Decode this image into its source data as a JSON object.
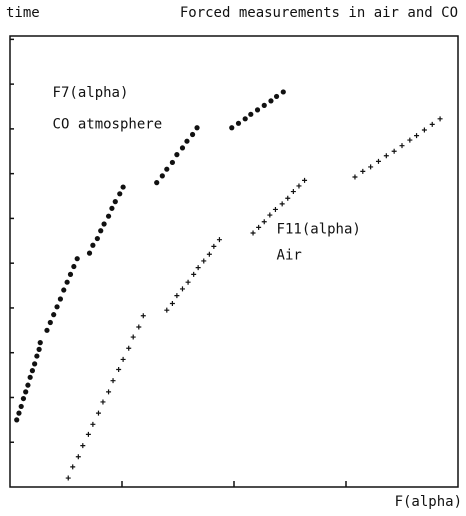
{
  "chart_data": {
    "type": "scatter",
    "title": "Forced measurements in air and CO",
    "y_label": "time",
    "x_label": "F(alpha)",
    "annotations": [
      {
        "text": "F7(alpha)",
        "x": 0.38,
        "y": 3.52
      },
      {
        "text": "CO atmosphere",
        "x": 0.38,
        "y": 3.24
      },
      {
        "text": "F11(alpha)",
        "x": 2.38,
        "y": 2.3
      },
      {
        "text": "Air",
        "x": 2.38,
        "y": 2.07
      }
    ],
    "xlim": [
      0,
      4
    ],
    "ylim": [
      0,
      4.03
    ],
    "xticks": [
      1,
      2,
      3
    ],
    "yticks": [
      0.4,
      0.8,
      1.2,
      1.6,
      2.0,
      2.4,
      2.8,
      3.2,
      3.6,
      4.0
    ],
    "series": [
      {
        "name": "F7(alpha)",
        "color": "#111111",
        "marker": "dot",
        "x": [
          0.06,
          0.08,
          0.1,
          0.12,
          0.14,
          0.16,
          0.18,
          0.2,
          0.22,
          0.24,
          0.26,
          0.27,
          0.33,
          0.36,
          0.39,
          0.42,
          0.45,
          0.48,
          0.51,
          0.54,
          0.57,
          0.6,
          0.71,
          0.74,
          0.78,
          0.81,
          0.84,
          0.88,
          0.91,
          0.94,
          0.98,
          1.01,
          1.31,
          1.36,
          1.4,
          1.45,
          1.49,
          1.54,
          1.58,
          1.63,
          1.67,
          1.98,
          2.04,
          2.1,
          2.15,
          2.21,
          2.27,
          2.33,
          2.38,
          2.44
        ],
        "values": [
          0.6,
          0.66,
          0.72,
          0.79,
          0.85,
          0.91,
          0.98,
          1.04,
          1.1,
          1.17,
          1.23,
          1.29,
          1.4,
          1.47,
          1.54,
          1.61,
          1.68,
          1.76,
          1.83,
          1.9,
          1.97,
          2.04,
          2.09,
          2.16,
          2.22,
          2.29,
          2.35,
          2.42,
          2.49,
          2.55,
          2.62,
          2.68,
          2.72,
          2.78,
          2.84,
          2.9,
          2.97,
          3.03,
          3.09,
          3.15,
          3.21,
          3.21,
          3.25,
          3.29,
          3.33,
          3.37,
          3.41,
          3.45,
          3.49,
          3.53
        ]
      },
      {
        "name": "F11(alpha)",
        "color": "#111111",
        "marker": "plus",
        "x": [
          0.52,
          0.56,
          0.61,
          0.65,
          0.7,
          0.74,
          0.79,
          0.83,
          0.88,
          0.92,
          0.97,
          1.01,
          1.06,
          1.1,
          1.15,
          1.19,
          1.4,
          1.45,
          1.49,
          1.54,
          1.59,
          1.64,
          1.68,
          1.73,
          1.78,
          1.82,
          1.87,
          2.17,
          2.22,
          2.27,
          2.32,
          2.37,
          2.43,
          2.48,
          2.53,
          2.58,
          2.63,
          3.08,
          3.15,
          3.22,
          3.29,
          3.36,
          3.43,
          3.5,
          3.57,
          3.63,
          3.7,
          3.77,
          3.84
        ],
        "values": [
          0.08,
          0.18,
          0.27,
          0.37,
          0.47,
          0.56,
          0.66,
          0.76,
          0.85,
          0.95,
          1.05,
          1.14,
          1.24,
          1.34,
          1.43,
          1.53,
          1.58,
          1.64,
          1.71,
          1.77,
          1.83,
          1.9,
          1.96,
          2.02,
          2.08,
          2.15,
          2.21,
          2.27,
          2.32,
          2.37,
          2.43,
          2.48,
          2.53,
          2.58,
          2.64,
          2.69,
          2.74,
          2.77,
          2.82,
          2.86,
          2.91,
          2.96,
          3.0,
          3.05,
          3.1,
          3.14,
          3.19,
          3.24,
          3.29
        ]
      }
    ]
  }
}
